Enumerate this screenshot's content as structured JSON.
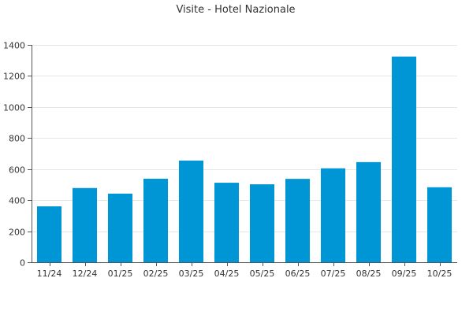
{
  "chart_data": {
    "type": "bar",
    "title": "Visite - Hotel Nazionale",
    "categories": [
      "11/24",
      "12/24",
      "01/25",
      "02/25",
      "03/25",
      "04/25",
      "05/25",
      "06/25",
      "07/25",
      "08/25",
      "09/25",
      "10/25"
    ],
    "values": [
      360,
      478,
      442,
      538,
      655,
      512,
      502,
      537,
      605,
      645,
      1325,
      483
    ],
    "ylim": [
      0,
      1400
    ],
    "yticks": [
      0,
      200,
      400,
      600,
      800,
      1000,
      1200,
      1400
    ],
    "xlabel": "",
    "ylabel": "",
    "grid": true,
    "bar_color": "#0095d4"
  }
}
